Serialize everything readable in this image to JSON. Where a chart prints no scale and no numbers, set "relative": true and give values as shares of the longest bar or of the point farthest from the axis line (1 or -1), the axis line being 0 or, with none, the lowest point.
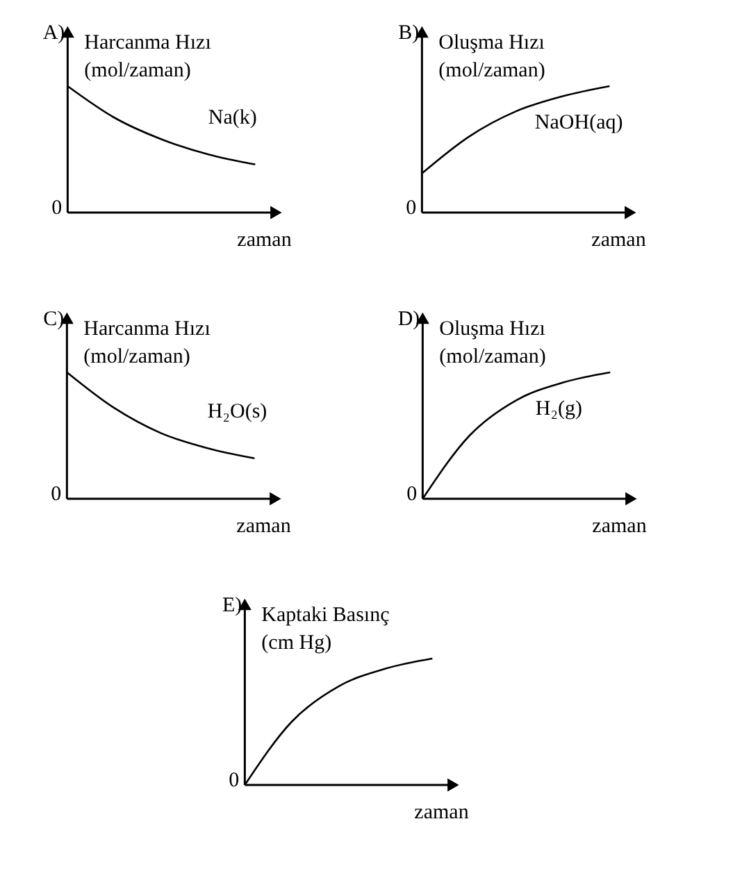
{
  "chart_data": [
    {
      "type": "line",
      "title": "A)",
      "ylabel": "Harcanma Hızı\n(mol/zaman)",
      "xlabel": "zaman",
      "relative": true,
      "categories": [
        null,
        null,
        null,
        null,
        null
      ],
      "series": [
        {
          "color": "#000000",
          "values": [
            1,
            0.75,
            0.58,
            0.46,
            0.38
          ]
        }
      ],
      "annotations": [
        "0",
        "Na(k)"
      ],
      "marker": "none",
      "grid": false,
      "legend": false
    },
    {
      "type": "line",
      "title": "B)",
      "ylabel": "Oluşma Hızı\n(mol/zaman)",
      "xlabel": "zaman",
      "relative": true,
      "categories": [
        null,
        null,
        null,
        null,
        null
      ],
      "series": [
        {
          "color": "#000000",
          "values": [
            0.31,
            0.6,
            0.8,
            0.92,
            1
          ]
        }
      ],
      "annotations": [
        "0",
        "NaOH(aq)"
      ],
      "marker": "none",
      "grid": false,
      "legend": false
    },
    {
      "type": "line",
      "title": "C)",
      "ylabel": "Harcanma Hızı\n(mol/zaman)",
      "xlabel": "zaman",
      "relative": true,
      "categories": [
        null,
        null,
        null,
        null,
        null
      ],
      "series": [
        {
          "color": "#000000",
          "values": [
            1,
            0.72,
            0.52,
            0.4,
            0.32
          ]
        }
      ],
      "annotations": [
        "0",
        "H₂O(s)"
      ],
      "marker": "none",
      "grid": false,
      "legend": false
    },
    {
      "type": "line",
      "title": "D)",
      "ylabel": "Oluşma Hızı\n(mol/zaman)",
      "xlabel": "zaman",
      "relative": true,
      "categories": [
        null,
        null,
        null,
        null,
        null
      ],
      "series": [
        {
          "color": "#000000",
          "values": [
            0,
            0.5,
            0.78,
            0.92,
            1
          ]
        }
      ],
      "annotations": [
        "0",
        "H₂(g)"
      ],
      "marker": "none",
      "grid": false,
      "legend": false
    },
    {
      "type": "line",
      "title": "E)",
      "ylabel": "Kaptaki Basınç\n(cm Hg)",
      "xlabel": "zaman",
      "relative": true,
      "categories": [
        null,
        null,
        null,
        null,
        null
      ],
      "series": [
        {
          "color": "#000000",
          "values": [
            0,
            0.5,
            0.78,
            0.92,
            1
          ]
        }
      ],
      "annotations": [
        "0"
      ],
      "marker": "none",
      "grid": false,
      "legend": false
    }
  ]
}
